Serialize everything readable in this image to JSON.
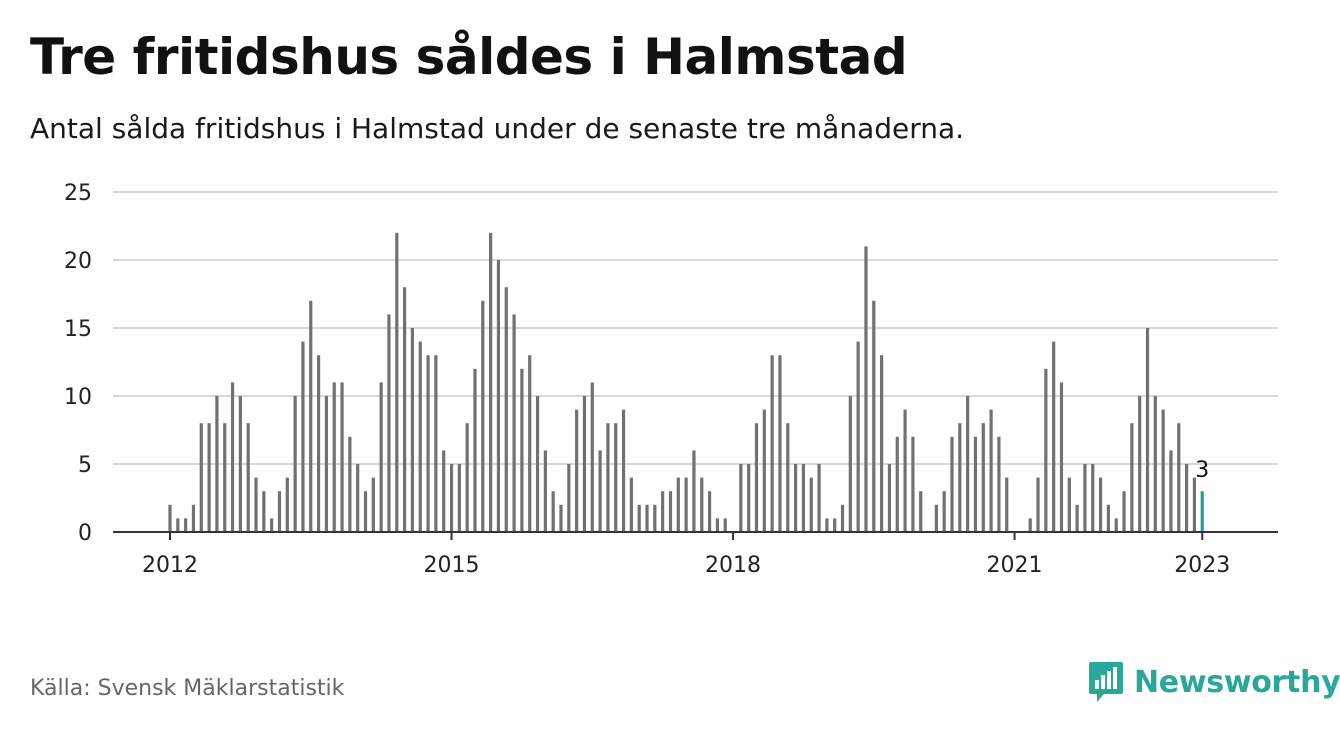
{
  "title": "Tre fritidshus såldes i Halmstad",
  "subtitle": "Antal sålda fritidshus i Halmstad under de senaste tre månaderna.",
  "source": "Källa: Svensk Mäklarstatistik",
  "brand": {
    "name": "Newsworthy",
    "icon": "newsworthy-logo-icon",
    "color": "#2aa79b"
  },
  "colors": {
    "bar": "#707075",
    "highlight": "#1aa39a",
    "grid": "#d8d8d8",
    "axis": "#333333"
  },
  "chart_data": {
    "type": "bar",
    "x_start": "2012-01",
    "x_end": "2023-01",
    "ylim": [
      0,
      25
    ],
    "yticks": [
      0,
      5,
      10,
      15,
      20,
      25
    ],
    "xticks": [
      "2012",
      "2015",
      "2018",
      "2021",
      "2023"
    ],
    "grid": true,
    "values": [
      2,
      1,
      1,
      2,
      8,
      8,
      10,
      8,
      11,
      10,
      8,
      4,
      3,
      1,
      3,
      4,
      10,
      14,
      17,
      13,
      10,
      11,
      11,
      7,
      5,
      3,
      4,
      11,
      16,
      22,
      18,
      15,
      14,
      13,
      13,
      6,
      5,
      5,
      8,
      12,
      17,
      22,
      20,
      18,
      16,
      12,
      13,
      10,
      6,
      3,
      2,
      5,
      9,
      10,
      11,
      6,
      8,
      8,
      9,
      4,
      2,
      2,
      2,
      3,
      3,
      4,
      4,
      6,
      4,
      3,
      1,
      1,
      0,
      5,
      5,
      8,
      9,
      13,
      13,
      8,
      5,
      5,
      4,
      5,
      1,
      1,
      2,
      10,
      14,
      21,
      17,
      13,
      5,
      7,
      9,
      7,
      3,
      0,
      2,
      3,
      7,
      8,
      10,
      7,
      8,
      9,
      7,
      4,
      0,
      0,
      1,
      4,
      12,
      14,
      11,
      4,
      2,
      5,
      5,
      4,
      2,
      1,
      3,
      8,
      10,
      15,
      10,
      9,
      6,
      8,
      5,
      4,
      3
    ],
    "highlight_last": true,
    "annotation": {
      "label": "3"
    }
  }
}
